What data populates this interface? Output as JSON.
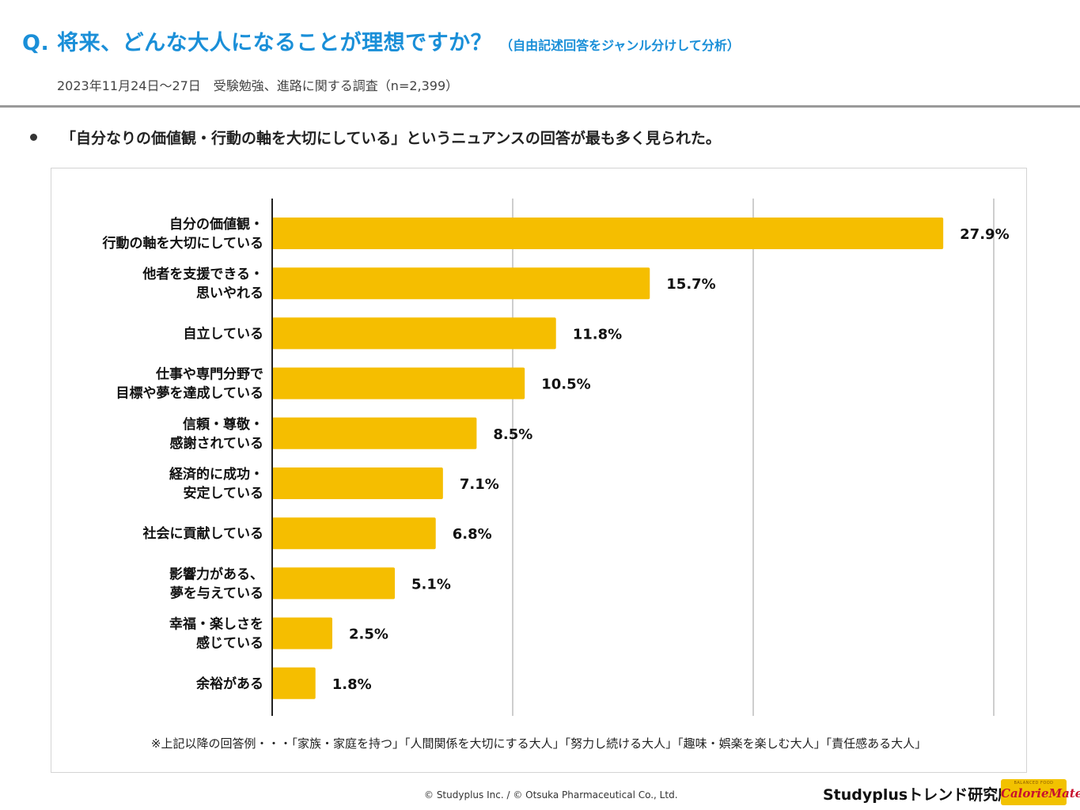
{
  "header": {
    "title": "Q. 将来、どんな大人になることが理想ですか？",
    "title_note": "（自由記述回答をジャンル分けして分析）",
    "survey_info": "2023年11月24日～27日　受験勉強、進路に関する調査（n=2,399）",
    "title_color": "#1a8fd8"
  },
  "summary": {
    "text": "「自分なりの価値観・行動の軸を大切にしている」というニュアンスの回答が最も多く見られた。"
  },
  "chart_data": {
    "type": "bar",
    "orientation": "horizontal",
    "categories": [
      [
        "自分の価値観・",
        "行動の軸を大切にしている"
      ],
      [
        "他者を支援できる・",
        "思いやれる"
      ],
      [
        "自立している"
      ],
      [
        "仕事や専門分野で",
        "目標や夢を達成している"
      ],
      [
        "信頼・尊敬・",
        "感謝されている"
      ],
      [
        "経済的に成功・",
        "安定している"
      ],
      [
        "社会に貢献している"
      ],
      [
        "影響力がある、",
        "夢を与えている"
      ],
      [
        "幸福・楽しさを",
        "感じている"
      ],
      [
        "余裕がある"
      ]
    ],
    "values": [
      27.9,
      15.7,
      11.8,
      10.5,
      8.5,
      7.1,
      6.8,
      5.1,
      2.5,
      1.8
    ],
    "value_labels": [
      "27.9%",
      "15.7%",
      "11.8%",
      "10.5%",
      "8.5%",
      "7.1%",
      "6.8%",
      "5.1%",
      "2.5%",
      "1.8%"
    ],
    "xlim": [
      0,
      30
    ],
    "gridlines": [
      0,
      10,
      20,
      30
    ],
    "bar_color": "#f5be00",
    "note": "※上記以降の回答例・・・「家族・家庭を持つ」「人間関係を大切にする大人」「努力し続ける大人」「趣味・娯楽を楽しむ大人」「責任感ある大人」"
  },
  "footer": {
    "copyright": "© Studyplus Inc. / © Otsuka Pharmaceutical Co., Ltd.",
    "lab_name": "Studyplusトレンド研究所",
    "logo_small": "BALANCED FOOD",
    "logo_text": "CalorieMate",
    "logo_color": "#f2c200"
  }
}
